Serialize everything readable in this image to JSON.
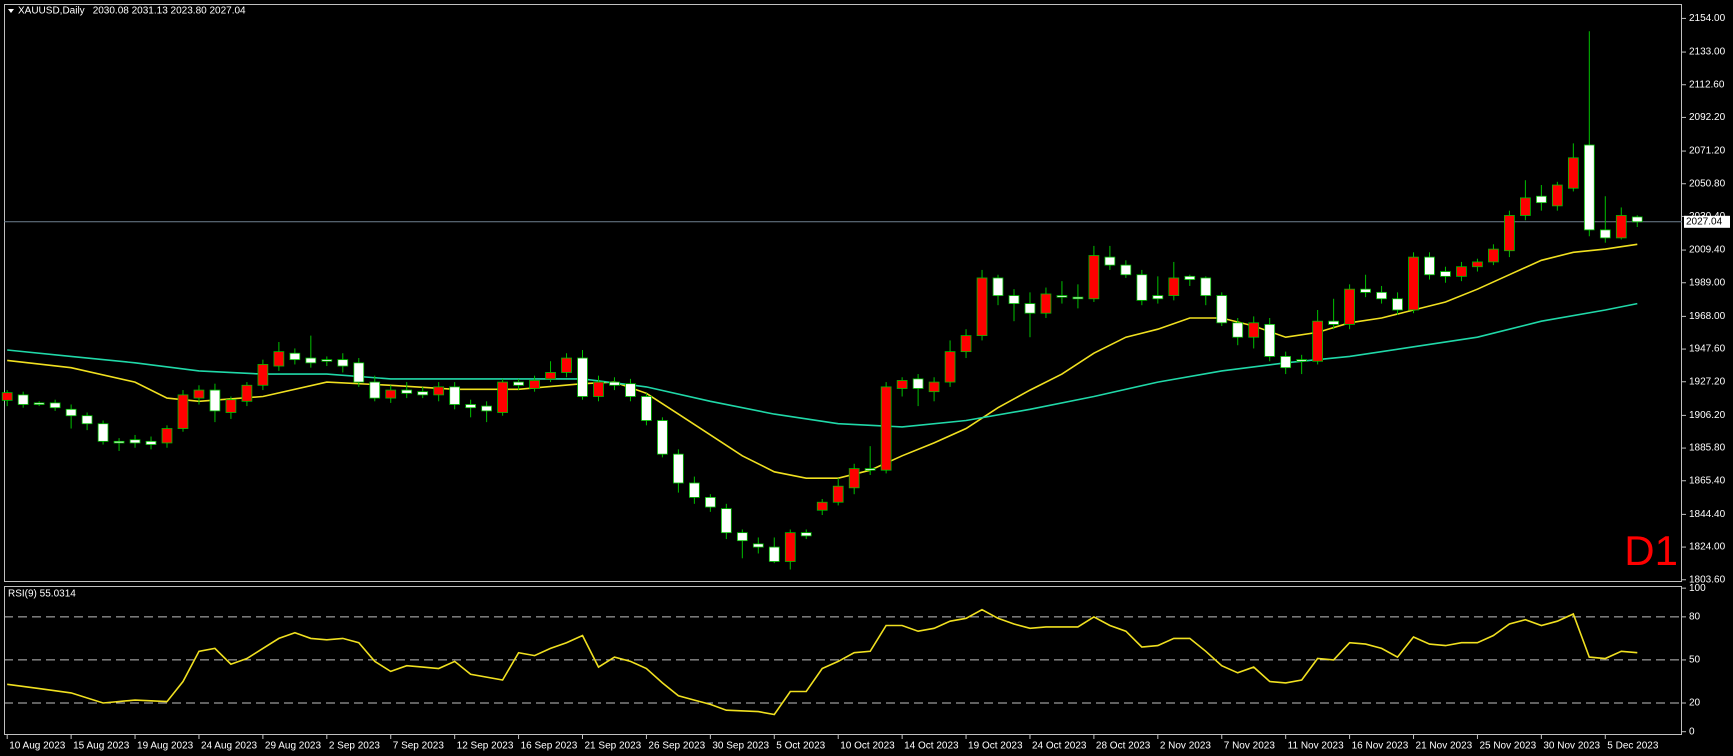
{
  "chart_data": [
    {
      "type": "candlestick",
      "title": "XAUUSD,Daily",
      "subtitle": "2030.08 2031.13 2023.80 2027.04",
      "annotation": "D1",
      "xlim": [
        -0.2,
        104.8
      ],
      "ylim": [
        1802.2,
        2163
      ],
      "yticks": [
        {
          "value": 2154,
          "label": "2154.00"
        },
        {
          "value": 2133,
          "label": "2133.00"
        },
        {
          "value": 2112.6,
          "label": "2112.60"
        },
        {
          "value": 2092.2,
          "label": "2092.20"
        },
        {
          "value": 2071.2,
          "label": "2071.20"
        },
        {
          "value": 2050.8,
          "label": "2050.80"
        },
        {
          "value": 2030.4,
          "label": "2030.40"
        },
        {
          "value": 2009.4,
          "label": "2009.40"
        },
        {
          "value": 1989,
          "label": "1989.00"
        },
        {
          "value": 1968,
          "label": "1968.00"
        },
        {
          "value": 1947.6,
          "label": "1947.60"
        },
        {
          "value": 1927.2,
          "label": "1927.20"
        },
        {
          "value": 1906.2,
          "label": "1906.20"
        },
        {
          "value": 1885.8,
          "label": "1885.80"
        },
        {
          "value": 1865.4,
          "label": "1865.40"
        },
        {
          "value": 1844.4,
          "label": "1844.40"
        },
        {
          "value": 1824,
          "label": "1824.00"
        },
        {
          "value": 1803.6,
          "label": "1803.60"
        }
      ],
      "xticks": [
        {
          "value": 0,
          "label": "10 Aug 2023"
        },
        {
          "value": 4,
          "label": "15 Aug 2023"
        },
        {
          "value": 8,
          "label": "19 Aug 2023"
        },
        {
          "value": 12,
          "label": "24 Aug 2023"
        },
        {
          "value": 16,
          "label": "29 Aug 2023"
        },
        {
          "value": 20,
          "label": "2 Sep 2023"
        },
        {
          "value": 24,
          "label": "7 Sep 2023"
        },
        {
          "value": 28,
          "label": "12 Sep 2023"
        },
        {
          "value": 32,
          "label": "16 Sep 2023"
        },
        {
          "value": 36,
          "label": "21 Sep 2023"
        },
        {
          "value": 40,
          "label": "26 Sep 2023"
        },
        {
          "value": 44,
          "label": "30 Sep 2023"
        },
        {
          "value": 48,
          "label": "5 Oct 2023"
        },
        {
          "value": 52,
          "label": "10 Oct 2023"
        },
        {
          "value": 56,
          "label": "14 Oct 2023"
        },
        {
          "value": 60,
          "label": "19 Oct 2023"
        },
        {
          "value": 64,
          "label": "24 Oct 2023"
        },
        {
          "value": 68,
          "label": "28 Oct 2023"
        },
        {
          "value": 72,
          "label": "2 Nov 2023"
        },
        {
          "value": 76,
          "label": "7 Nov 2023"
        },
        {
          "value": 80,
          "label": "11 Nov 2023"
        },
        {
          "value": 84,
          "label": "16 Nov 2023"
        },
        {
          "value": 88,
          "label": "21 Nov 2023"
        },
        {
          "value": 92,
          "label": "25 Nov 2023"
        },
        {
          "value": 96,
          "label": "30 Nov 2023"
        },
        {
          "value": 100,
          "label": "5 Dec 2023"
        }
      ],
      "up_color": "#ff0000",
      "down_color": "#ffffff",
      "wick_color": "#00c000",
      "last_price": {
        "value": 2027.04,
        "label": "2027.04"
      },
      "last_price_color": "#6f8090",
      "ohlc": [
        [
          1915.6,
          1922,
          1912,
          1920.4
        ],
        [
          1919,
          1921,
          1911,
          1913
        ],
        [
          1914,
          1915,
          1912,
          1913
        ],
        [
          1914,
          1916,
          1909,
          1911
        ],
        [
          1910,
          1913,
          1898,
          1906
        ],
        [
          1906,
          1908,
          1897,
          1901
        ],
        [
          1901,
          1903,
          1888,
          1890
        ],
        [
          1890,
          1892,
          1884,
          1889
        ],
        [
          1891,
          1894,
          1886,
          1889
        ],
        [
          1890,
          1893,
          1885,
          1888
        ],
        [
          1889,
          1900,
          1886,
          1898
        ],
        [
          1898,
          1922,
          1896,
          1919
        ],
        [
          1917,
          1925,
          1913,
          1922
        ],
        [
          1922,
          1926,
          1902,
          1909
        ],
        [
          1908,
          1918,
          1904,
          1916
        ],
        [
          1915,
          1927,
          1912,
          1925
        ],
        [
          1925,
          1941,
          1922,
          1938
        ],
        [
          1937,
          1952,
          1934,
          1946
        ],
        [
          1945,
          1948,
          1938,
          1941
        ],
        [
          1942,
          1956,
          1936,
          1939
        ],
        [
          1941,
          1943,
          1937,
          1940
        ],
        [
          1941,
          1945,
          1933,
          1937
        ],
        [
          1939,
          1942,
          1924,
          1927
        ],
        [
          1927,
          1931,
          1915,
          1917
        ],
        [
          1917,
          1925,
          1914,
          1922
        ],
        [
          1922,
          1927,
          1917,
          1920
        ],
        [
          1921,
          1924,
          1917,
          1919
        ],
        [
          1919,
          1927,
          1915,
          1924
        ],
        [
          1924,
          1927,
          1910,
          1913
        ],
        [
          1913,
          1916,
          1905,
          1911
        ],
        [
          1912,
          1915,
          1902,
          1909
        ],
        [
          1908,
          1929,
          1906,
          1927
        ],
        [
          1927,
          1929,
          1922,
          1925
        ],
        [
          1923,
          1931,
          1921,
          1928
        ],
        [
          1929,
          1940,
          1927,
          1933
        ],
        [
          1933,
          1945,
          1930,
          1942
        ],
        [
          1942,
          1947,
          1916,
          1918
        ],
        [
          1918,
          1931,
          1915,
          1927
        ],
        [
          1927,
          1930,
          1922,
          1925
        ],
        [
          1926,
          1929,
          1915,
          1918
        ],
        [
          1918,
          1920,
          1900,
          1903
        ],
        [
          1903,
          1905,
          1880,
          1882
        ],
        [
          1882,
          1885,
          1858,
          1864
        ],
        [
          1864,
          1868,
          1851,
          1855
        ],
        [
          1855,
          1857,
          1846,
          1849
        ],
        [
          1848,
          1851,
          1829,
          1833
        ],
        [
          1833,
          1835,
          1817,
          1828
        ],
        [
          1826,
          1830,
          1820,
          1824
        ],
        [
          1824,
          1830,
          1814,
          1815
        ],
        [
          1815,
          1835,
          1810,
          1833
        ],
        [
          1833,
          1835,
          1829,
          1831
        ],
        [
          1847,
          1854,
          1844,
          1852
        ],
        [
          1852,
          1867,
          1850,
          1862
        ],
        [
          1861,
          1876,
          1857,
          1873
        ],
        [
          1873,
          1887,
          1869,
          1872
        ],
        [
          1872,
          1927,
          1870,
          1924
        ],
        [
          1923,
          1930,
          1918,
          1928
        ],
        [
          1929,
          1932,
          1912,
          1923
        ],
        [
          1921,
          1930,
          1915,
          1927
        ],
        [
          1927,
          1953,
          1924,
          1946
        ],
        [
          1946,
          1960,
          1942,
          1956
        ],
        [
          1956,
          1997,
          1953,
          1992
        ],
        [
          1992,
          1994,
          1975,
          1981
        ],
        [
          1981,
          1985,
          1965,
          1976
        ],
        [
          1976,
          1983,
          1955,
          1970
        ],
        [
          1970,
          1986,
          1967,
          1982
        ],
        [
          1981,
          1990,
          1976,
          1980
        ],
        [
          1980,
          1988,
          1973,
          1979
        ],
        [
          1979,
          2012,
          1977,
          2006
        ],
        [
          2005,
          2012,
          1997,
          2000
        ],
        [
          2000,
          2003,
          1992,
          1994
        ],
        [
          1994,
          1997,
          1975,
          1978
        ],
        [
          1981,
          1993,
          1976,
          1979
        ],
        [
          1981,
          2002,
          1978,
          1992
        ],
        [
          1993,
          1994,
          1987,
          1991
        ],
        [
          1992,
          1993,
          1975,
          1981
        ],
        [
          1981,
          1983,
          1962,
          1964
        ],
        [
          1964,
          1967,
          1950,
          1955
        ],
        [
          1955,
          1968,
          1948,
          1964
        ],
        [
          1963,
          1967,
          1940,
          1943
        ],
        [
          1943,
          1946,
          1932,
          1936
        ],
        [
          1941,
          1944,
          1932,
          1940
        ],
        [
          1940,
          1972,
          1938,
          1965
        ],
        [
          1965,
          1979,
          1960,
          1963
        ],
        [
          1963,
          1988,
          1960,
          1985
        ],
        [
          1985,
          1994,
          1980,
          1983
        ],
        [
          1983,
          1987,
          1976,
          1979
        ],
        [
          1979,
          1983,
          1969,
          1972
        ],
        [
          1972,
          2008,
          1970,
          2005
        ],
        [
          2005,
          2008,
          1991,
          1994
        ],
        [
          1996,
          1999,
          1989,
          1993
        ],
        [
          1993,
          2002,
          1990,
          1999
        ],
        [
          1999,
          2004,
          1996,
          2002
        ],
        [
          2002,
          2013,
          2000,
          2010
        ],
        [
          2009,
          2034,
          2005,
          2031
        ],
        [
          2031,
          2053,
          2028,
          2042
        ],
        [
          2043,
          2050,
          2034,
          2039
        ],
        [
          2037,
          2052,
          2034,
          2050
        ],
        [
          2048,
          2076,
          2046,
          2067
        ],
        [
          2075,
          2146,
          2018,
          2022
        ],
        [
          2022,
          2043,
          2014,
          2017
        ],
        [
          2017,
          2036,
          2016,
          2031
        ],
        [
          2030.08,
          2031.13,
          2023.8,
          2027.04
        ]
      ],
      "overlays": [
        {
          "color": "#f0e020",
          "x": [
            0,
            4,
            8,
            10,
            12,
            16,
            20,
            24,
            28,
            32,
            36,
            38,
            40,
            42,
            44,
            46,
            48,
            50,
            52,
            54,
            56,
            58,
            60,
            62,
            64,
            66,
            68,
            70,
            72,
            74,
            76,
            78,
            80,
            82,
            84,
            86,
            88,
            90,
            92,
            94,
            96,
            98,
            100,
            102
          ],
          "values": [
            1940.5,
            1936,
            1927,
            1917,
            1915,
            1918,
            1927,
            1925,
            1922.5,
            1922.5,
            1926,
            1927,
            1920,
            1907,
            1894,
            1881,
            1871,
            1867,
            1867,
            1872,
            1881,
            1889,
            1898,
            1911,
            1922,
            1932,
            1945,
            1955,
            1960,
            1967,
            1967,
            1962,
            1955,
            1958,
            1964,
            1967,
            1972,
            1977,
            1985,
            1994,
            2003,
            2008,
            2010,
            2013
          ]
        },
        {
          "color": "#20d8a8",
          "x": [
            0,
            4,
            8,
            12,
            16,
            20,
            24,
            28,
            32,
            36,
            40,
            44,
            48,
            52,
            56,
            60,
            64,
            68,
            72,
            76,
            80,
            84,
            88,
            92,
            96,
            100,
            102
          ],
          "values": [
            1947,
            1943,
            1939,
            1934,
            1932,
            1932,
            1929,
            1929,
            1929,
            1929,
            1924,
            1915,
            1907,
            1901,
            1899,
            1903,
            1910,
            1918,
            1927,
            1934,
            1939,
            1943,
            1949,
            1955,
            1965,
            1972,
            1976
          ]
        }
      ]
    },
    {
      "type": "line",
      "title": "RSI(9) 55.0314",
      "color": "#f0e020",
      "xlim": [
        -0.2,
        104.8
      ],
      "ylim": [
        -2.3,
        101.5
      ],
      "yticks": [
        100,
        80,
        50,
        20,
        0
      ],
      "levels": [
        80,
        50,
        20
      ],
      "x": [
        0,
        2,
        4,
        6,
        8,
        10,
        11,
        12,
        13,
        14,
        15,
        16,
        17,
        18,
        19,
        20,
        21,
        22,
        23,
        24,
        25,
        26,
        27,
        28,
        29,
        31,
        32,
        33,
        34,
        35,
        36,
        37,
        38,
        39,
        40,
        41,
        42,
        43,
        44,
        45,
        47,
        48,
        49,
        50,
        51,
        52,
        53,
        54,
        55,
        56,
        57,
        58,
        59,
        60,
        61,
        62,
        63,
        64,
        65,
        66,
        67,
        68,
        69,
        70,
        71,
        72,
        73,
        74,
        75,
        76,
        77,
        78,
        79,
        80,
        81,
        82,
        83,
        84,
        85,
        86,
        87,
        88,
        89,
        90,
        91,
        92,
        93,
        94,
        95,
        96,
        97,
        98,
        99,
        100,
        101,
        102
      ],
      "values": [
        33,
        30,
        27,
        20,
        22,
        21,
        35,
        56,
        58,
        47,
        51,
        58,
        65,
        69,
        65,
        64,
        65,
        62,
        49,
        42,
        46,
        45,
        44,
        49,
        40,
        36,
        55,
        53,
        58,
        62,
        67,
        45,
        52,
        49,
        44,
        34,
        25,
        22,
        19,
        15,
        14,
        12,
        28,
        28,
        44,
        49,
        55,
        56,
        74,
        74,
        70,
        72,
        77,
        79,
        85,
        79,
        75,
        72,
        73,
        73,
        73,
        80,
        74,
        70,
        59,
        60,
        65,
        65,
        56,
        46,
        41,
        45,
        35,
        34,
        36,
        51,
        50,
        62,
        61,
        58,
        52,
        66,
        61,
        60,
        62,
        62,
        67,
        75,
        78,
        74,
        77,
        82,
        52,
        51,
        56,
        55.03
      ]
    }
  ]
}
